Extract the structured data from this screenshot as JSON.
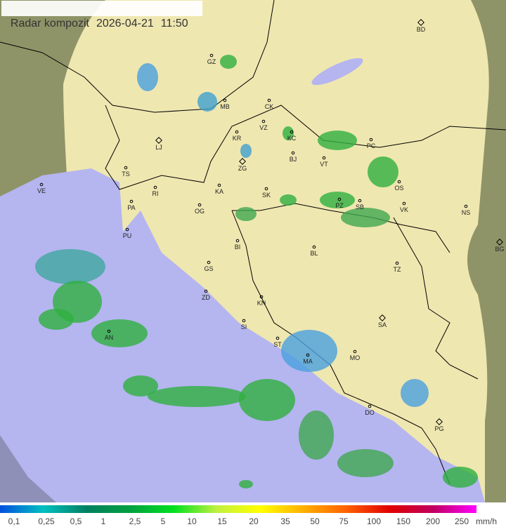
{
  "header": {
    "title": "Radar kompozit",
    "date": "2026-04-21",
    "time": "11:50"
  },
  "map": {
    "colors": {
      "terrain_outside": "#8f9468",
      "radar_area": "#f0e8b0",
      "sea": "#b4b4f0",
      "borders": "#000000",
      "precip_light": "#3bb04a",
      "precip_mid": "#20c040",
      "precip_low": "#4aa0e0"
    },
    "cities": [
      {
        "code": "GZ",
        "capital": false
      },
      {
        "code": "MB",
        "capital": false
      },
      {
        "code": "CK",
        "capital": false
      },
      {
        "code": "VZ",
        "capital": false
      },
      {
        "code": "LJ",
        "capital": true
      },
      {
        "code": "KR",
        "capital": false
      },
      {
        "code": "KC",
        "capital": false
      },
      {
        "code": "PC",
        "capital": false
      },
      {
        "code": "ZG",
        "capital": true
      },
      {
        "code": "BJ",
        "capital": false
      },
      {
        "code": "VT",
        "capital": false
      },
      {
        "code": "BD",
        "capital": true
      },
      {
        "code": "TS",
        "capital": false
      },
      {
        "code": "VE",
        "capital": false
      },
      {
        "code": "RI",
        "capital": false
      },
      {
        "code": "PA",
        "capital": false
      },
      {
        "code": "KA",
        "capital": false
      },
      {
        "code": "SK",
        "capital": false
      },
      {
        "code": "OG",
        "capital": false
      },
      {
        "code": "PZ",
        "capital": false
      },
      {
        "code": "SB",
        "capital": false
      },
      {
        "code": "OS",
        "capital": false
      },
      {
        "code": "VK",
        "capital": false
      },
      {
        "code": "NS",
        "capital": false
      },
      {
        "code": "PU",
        "capital": false
      },
      {
        "code": "BI",
        "capital": false
      },
      {
        "code": "BL",
        "capital": false
      },
      {
        "code": "BG",
        "capital": true
      },
      {
        "code": "GS",
        "capital": false
      },
      {
        "code": "TZ",
        "capital": false
      },
      {
        "code": "ZD",
        "capital": false
      },
      {
        "code": "KN",
        "capital": false
      },
      {
        "code": "AN",
        "capital": false
      },
      {
        "code": "SI",
        "capital": false
      },
      {
        "code": "SA",
        "capital": true
      },
      {
        "code": "ST",
        "capital": false
      },
      {
        "code": "MA",
        "capital": false
      },
      {
        "code": "MO",
        "capital": false
      },
      {
        "code": "DO",
        "capital": false
      },
      {
        "code": "PG",
        "capital": true
      }
    ]
  },
  "legend": {
    "unit": "mm/h",
    "labels": [
      "0,1",
      "0,25",
      "0,5",
      "1",
      "2,5",
      "5",
      "10",
      "15",
      "20",
      "35",
      "50",
      "75",
      "100",
      "150",
      "200",
      "250"
    ],
    "gradient": [
      "#0050e0",
      "#00c0c0",
      "#008060",
      "#00a040",
      "#00e020",
      "#c0f040",
      "#ffff00",
      "#ffb000",
      "#ff6000",
      "#e00000",
      "#c00060",
      "#ff00ff"
    ]
  }
}
